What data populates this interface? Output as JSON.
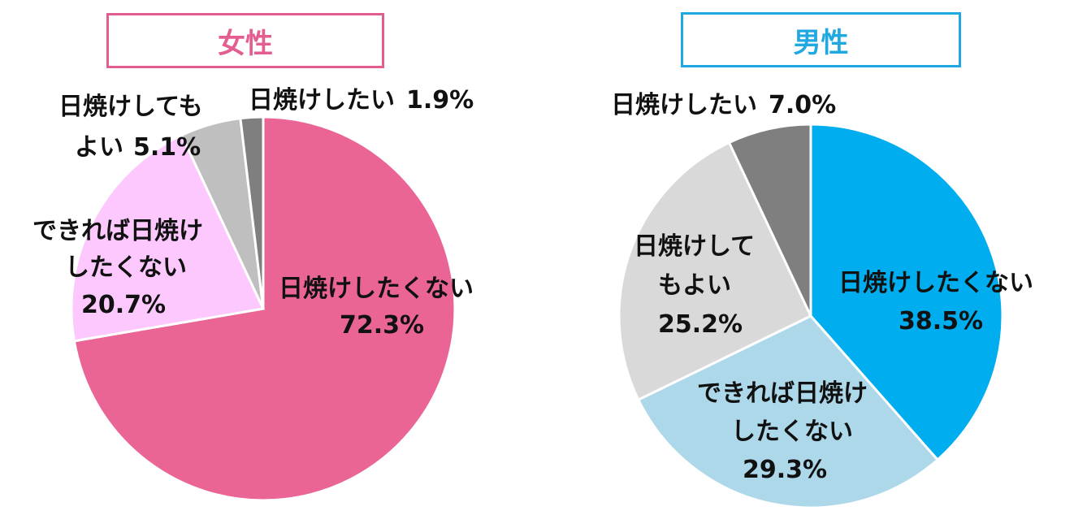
{
  "chart_data": [
    {
      "type": "pie",
      "title": "女性",
      "title_color": "#e35d91",
      "slices": [
        {
          "label": "日焼けしたくない",
          "value": 72.3,
          "value_text": "72.3%",
          "color": "#ea6496"
        },
        {
          "label": "できれば日焼けしたくない",
          "value": 20.7,
          "value_text": "20.7%",
          "color": "#fdc8fd"
        },
        {
          "label": "日焼けしてもよい",
          "value": 5.1,
          "value_text": "5.1%",
          "color": "#bfbfbf"
        },
        {
          "label": "日焼けしたい",
          "value": 1.9,
          "value_text": "1.9%",
          "color": "#7f7f7f"
        }
      ]
    },
    {
      "type": "pie",
      "title": "男性",
      "title_color": "#20a8e0",
      "slices": [
        {
          "label": "日焼けしたくない",
          "value": 38.5,
          "value_text": "38.5%",
          "color": "#00aeef"
        },
        {
          "label": "できれば日焼けしたくない",
          "value": 29.3,
          "value_text": "29.3%",
          "color": "#add8ea"
        },
        {
          "label": "日焼けしてもよい",
          "value": 25.2,
          "value_text": "25.2%",
          "color": "#d9d9d9"
        },
        {
          "label": "日焼けしたい",
          "value": 7.0,
          "value_text": "7.0%",
          "color": "#7f7f7f"
        }
      ]
    }
  ]
}
